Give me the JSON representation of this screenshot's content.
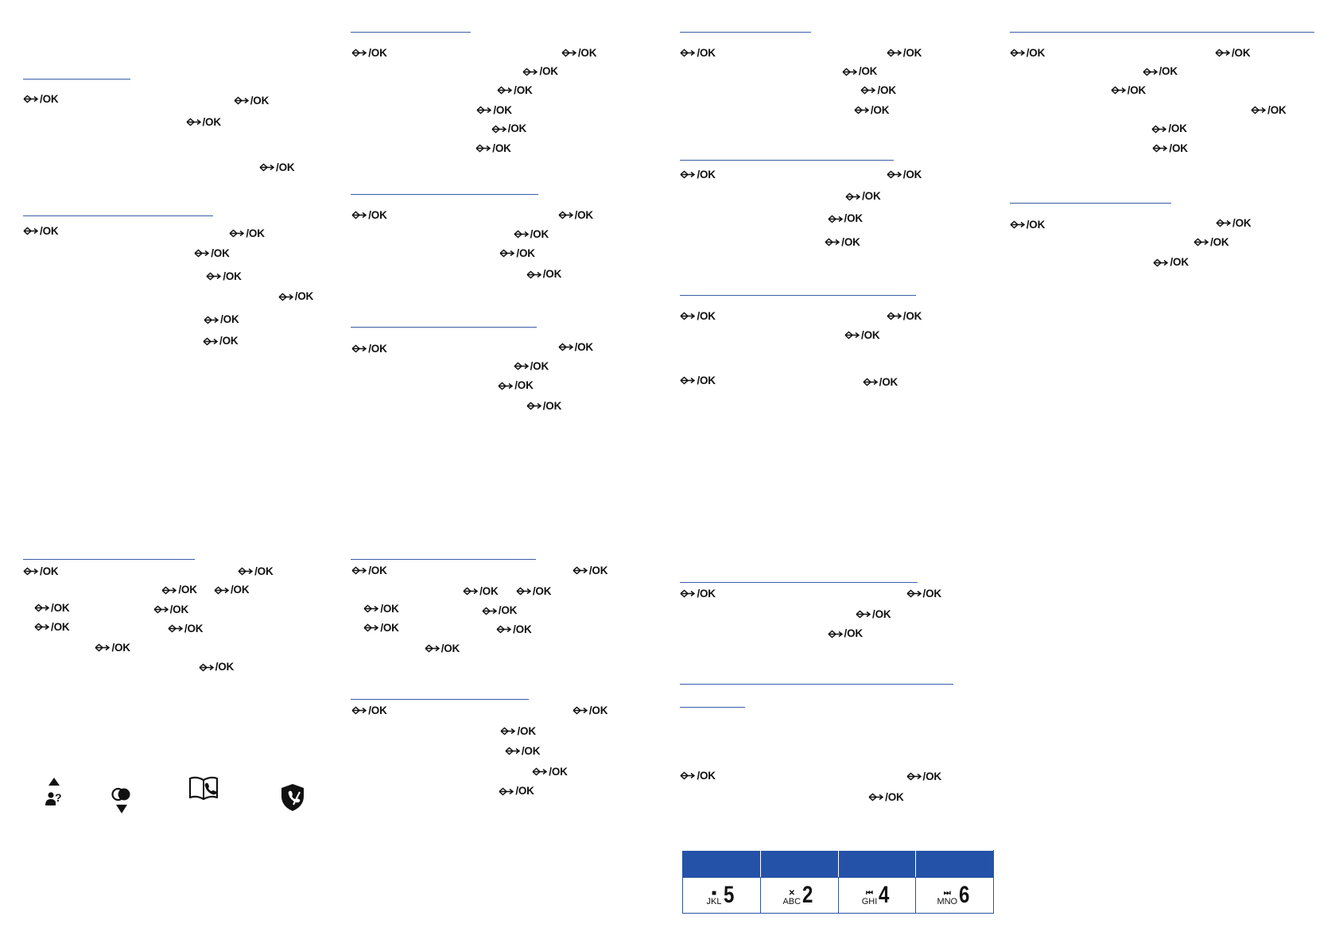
{
  "ok_label": "/OK",
  "nav_icon": "up-down-nav-icon",
  "rule_color": "#3a5ea8",
  "header_blue": "#2452a8",
  "bottom_icons": [
    "contact-question-icon",
    "toggle-down-icon",
    "phonebook-icon",
    "call-block-shield-icon"
  ],
  "key_table": {
    "keys": [
      {
        "symbol": "■",
        "letters": "JKL",
        "digit": "5"
      },
      {
        "symbol": "✕",
        "letters": "ABC",
        "digit": "2"
      },
      {
        "symbol": "⏮",
        "letters": "GHI",
        "digit": "4"
      },
      {
        "symbol": "⏭",
        "letters": "MNO",
        "digit": "6"
      }
    ]
  }
}
